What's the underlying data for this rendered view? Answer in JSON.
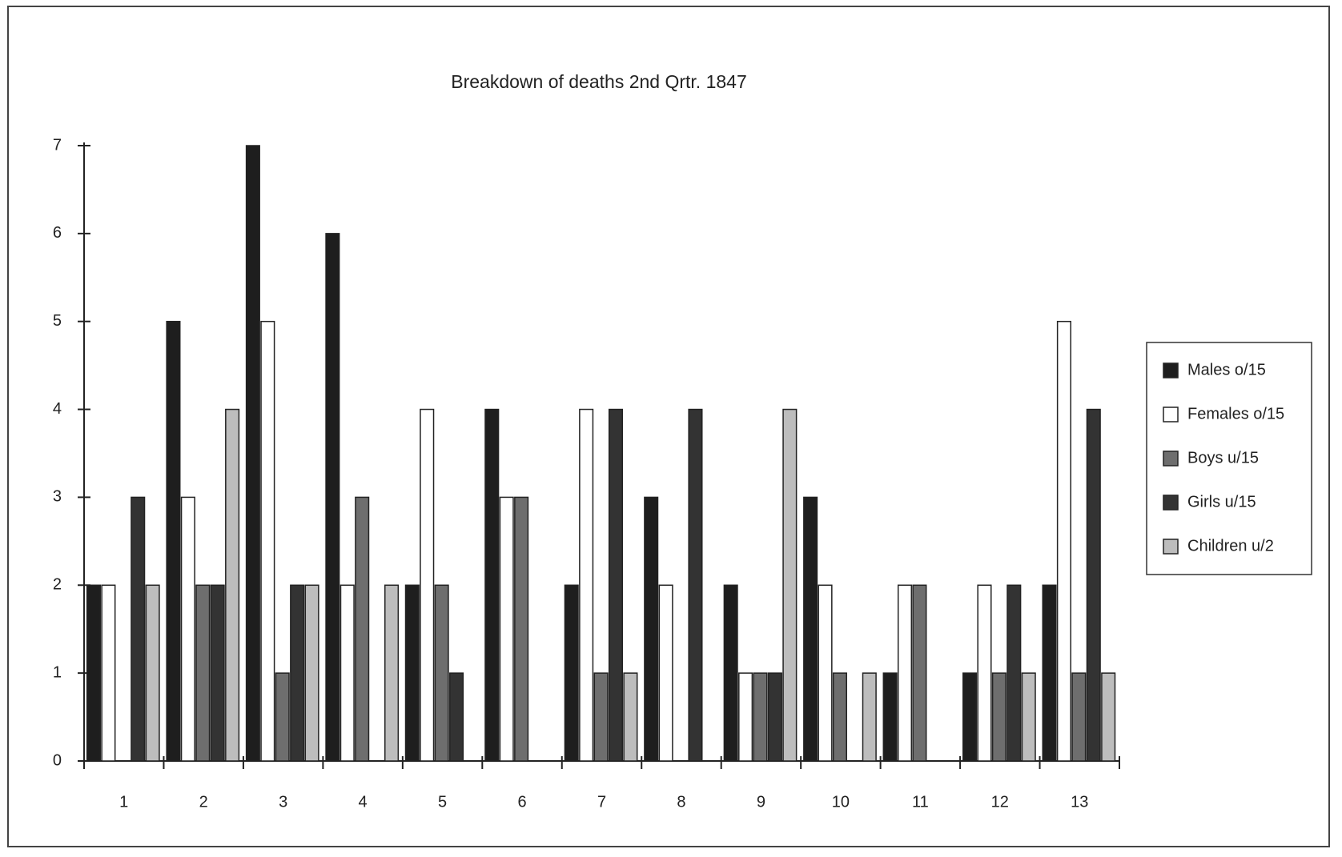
{
  "chart_data": {
    "type": "bar",
    "title": "Breakdown of deaths 2nd Qrtr. 1847",
    "categories": [
      "1",
      "2",
      "3",
      "4",
      "5",
      "6",
      "7",
      "8",
      "9",
      "10",
      "11",
      "12",
      "13"
    ],
    "series": [
      {
        "name": "Males o/15",
        "color": "#1e1e1e",
        "values": [
          2,
          5,
          7,
          6,
          2,
          4,
          2,
          3,
          2,
          3,
          1,
          1,
          2
        ]
      },
      {
        "name": "Females o/15",
        "color": "#ffffff",
        "values": [
          2,
          3,
          5,
          2,
          4,
          3,
          4,
          2,
          1,
          2,
          2,
          2,
          5
        ]
      },
      {
        "name": "Boys u/15",
        "color": "#6e6e6e",
        "values": [
          0,
          2,
          1,
          3,
          2,
          3,
          1,
          0,
          1,
          1,
          2,
          1,
          1
        ]
      },
      {
        "name": "Girls u/15",
        "color": "#333333",
        "values": [
          3,
          2,
          2,
          0,
          1,
          0,
          4,
          4,
          1,
          0,
          0,
          2,
          4
        ]
      },
      {
        "name": "Children u/2",
        "color": "#bdbdbd",
        "values": [
          2,
          4,
          2,
          2,
          0,
          0,
          1,
          0,
          4,
          1,
          0,
          1,
          1
        ]
      }
    ],
    "ylim": [
      0,
      7
    ],
    "yticks": [
      0,
      1,
      2,
      3,
      4,
      5,
      6,
      7
    ],
    "legend": "right"
  }
}
